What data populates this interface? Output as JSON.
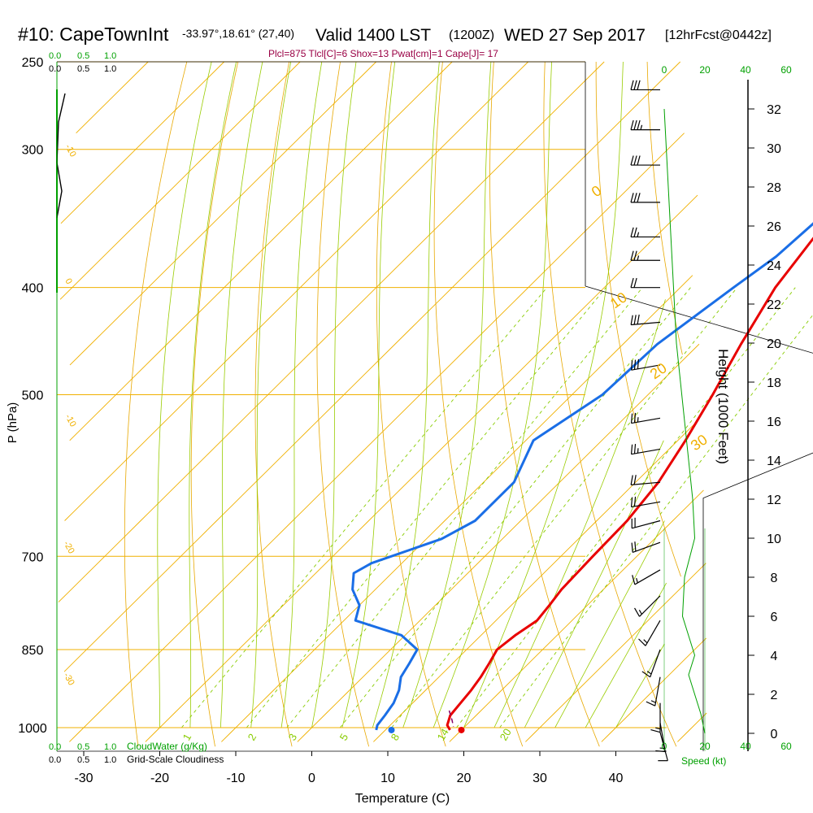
{
  "header": {
    "title_station": "#10: CapeTownInt",
    "title_coords": "-33.97°,18.61° (27,40)",
    "title_valid": "Valid 1400 LST",
    "title_z": "(1200Z)",
    "title_date": "WED 27 Sep 2017",
    "title_fcst": "[12hrFcst@0442z]",
    "stats": "Plcl=875 Tlcl[C]=6 Shox=13 Pwat[cm]=1 Cape[J]= 17"
  },
  "labels": {
    "ylabel": "P (hPa)",
    "xlabel": "Temperature (C)",
    "height_label": "Height (1000 Feet)",
    "cloudwater_label": "CloudWater (g/Kg)",
    "cloudiness_label": "Grid-Scale Cloudiness",
    "speed_label": "Speed (kt)"
  },
  "colors": {
    "isotherm": "#f0b000",
    "dry_adiabat": "#e8a800",
    "moist_adiabat": "#99cc00",
    "mixing_ratio": "#88cc00",
    "temperature": "#e80000",
    "dewpoint": "#1a6ee6",
    "green": "#00a000",
    "magenta": "#990044"
  },
  "chart_data": {
    "type": "line",
    "title": "#10: CapeTownInt -33.97°,18.61° (27,40) Valid 1400 LST (1200Z) WED 27 Sep 2017 [12hrFcst@0442z]",
    "xlabel": "Temperature (C)",
    "ylabel": "P (hPa)",
    "x_ticks": [
      "-30",
      "-20",
      "-10",
      "0",
      "10",
      "20",
      "30",
      "40"
    ],
    "p_ticks": [
      "250",
      "300",
      "400",
      "500",
      "700",
      "850",
      "1000"
    ],
    "height_ticks": [
      "0",
      "2",
      "4",
      "6",
      "8",
      "10",
      "12",
      "14",
      "16",
      "18",
      "20",
      "22",
      "24",
      "26",
      "28",
      "30",
      "32"
    ],
    "isotherm_labels": [
      "-10",
      "0",
      "-10",
      "-20",
      "-30",
      "0",
      "10",
      "20",
      "30"
    ],
    "mixing_ratio_labels": [
      "1",
      "2",
      "3",
      "5",
      "8",
      "14",
      "20"
    ],
    "cloud_scale_top_green": [
      "0.0",
      "0.5",
      "1.0"
    ],
    "cloud_scale_top_black": [
      "0.0",
      "0.5",
      "1.0"
    ],
    "cloud_scale_bottom_green": [
      "0.0",
      "0.5",
      "1.0"
    ],
    "cloud_scale_bottom_black": [
      "0.0",
      "0.5",
      "1.0"
    ],
    "speed_ticks_top": [
      "0",
      "20",
      "40",
      "60"
    ],
    "speed_ticks_bottom": [
      "0",
      "20",
      "40",
      "60"
    ],
    "series": [
      {
        "name": "Temperature",
        "points": [
          [
            -3.0,
            265
          ],
          [
            -1.5,
            300
          ],
          [
            0.5,
            350
          ],
          [
            2.5,
            400
          ],
          [
            5.5,
            450
          ],
          [
            8.5,
            500
          ],
          [
            11.0,
            550
          ],
          [
            13.0,
            600
          ],
          [
            14.0,
            650
          ],
          [
            14.2,
            700
          ],
          [
            14.5,
            750
          ],
          [
            15.0,
            775
          ],
          [
            15.4,
            800
          ],
          [
            14.5,
            825
          ],
          [
            14.0,
            850
          ],
          [
            14.8,
            875
          ],
          [
            15.5,
            900
          ],
          [
            16.0,
            925
          ],
          [
            16.3,
            950
          ],
          [
            16.6,
            975
          ],
          [
            17.5,
            995
          ],
          [
            18.5,
            1005
          ]
        ]
      },
      {
        "name": "Dewpoint",
        "points": [
          [
            -7.5,
            265
          ],
          [
            -4.5,
            300
          ],
          [
            -1.0,
            350
          ],
          [
            -1.5,
            375
          ],
          [
            -3.0,
            400
          ],
          [
            -5.5,
            450
          ],
          [
            -6.0,
            500
          ],
          [
            -9.0,
            550
          ],
          [
            -6.0,
            600
          ],
          [
            -6.0,
            650
          ],
          [
            -8.0,
            675
          ],
          [
            -14.0,
            710
          ],
          [
            -15.0,
            725
          ],
          [
            -13.0,
            750
          ],
          [
            -10.0,
            775
          ],
          [
            -8.5,
            800
          ],
          [
            -0.5,
            825
          ],
          [
            3.5,
            850
          ],
          [
            4.3,
            875
          ],
          [
            5.0,
            900
          ],
          [
            6.5,
            925
          ],
          [
            7.5,
            950
          ],
          [
            8.0,
            975
          ],
          [
            8.3,
            995
          ],
          [
            8.8,
            1005
          ]
        ]
      },
      {
        "name": "Parcel",
        "points": [
          [
            15.8,
            965
          ],
          [
            17.5,
            985
          ],
          [
            18.5,
            998
          ]
        ]
      }
    ],
    "surface_markers": [
      {
        "name": "Surface temperature",
        "x": 20.0,
        "p": 1005
      },
      {
        "name": "Surface dewpoint",
        "x": 10.8,
        "p": 1005
      }
    ],
    "winds": [
      {
        "p": 265,
        "dir": 270,
        "spd": 30
      },
      {
        "p": 288,
        "dir": 270,
        "spd": 35
      },
      {
        "p": 310,
        "dir": 270,
        "spd": 30
      },
      {
        "p": 335,
        "dir": 270,
        "spd": 30
      },
      {
        "p": 360,
        "dir": 270,
        "spd": 25
      },
      {
        "p": 378,
        "dir": 270,
        "spd": 25
      },
      {
        "p": 400,
        "dir": 270,
        "spd": 20
      },
      {
        "p": 430,
        "dir": 265,
        "spd": 30
      },
      {
        "p": 470,
        "dir": 260,
        "spd": 30
      },
      {
        "p": 525,
        "dir": 260,
        "spd": 25
      },
      {
        "p": 560,
        "dir": 260,
        "spd": 25
      },
      {
        "p": 600,
        "dir": 265,
        "spd": 20
      },
      {
        "p": 625,
        "dir": 260,
        "spd": 20
      },
      {
        "p": 650,
        "dir": 255,
        "spd": 20
      },
      {
        "p": 680,
        "dir": 250,
        "spd": 20
      },
      {
        "p": 720,
        "dir": 240,
        "spd": 15
      },
      {
        "p": 760,
        "dir": 225,
        "spd": 15
      },
      {
        "p": 800,
        "dir": 210,
        "spd": 15
      },
      {
        "p": 850,
        "dir": 200,
        "spd": 15
      },
      {
        "p": 900,
        "dir": 190,
        "spd": 15
      },
      {
        "p": 950,
        "dir": 180,
        "spd": 15
      },
      {
        "p": 990,
        "dir": 170,
        "spd": 15
      },
      {
        "p": 1010,
        "dir": 165,
        "spd": 10
      }
    ],
    "wind_speed_profile": [
      [
        32,
        0
      ],
      [
        30,
        1
      ],
      [
        28,
        2
      ],
      [
        26,
        3
      ],
      [
        24,
        4
      ],
      [
        22,
        5
      ],
      [
        20,
        6
      ],
      [
        18,
        8
      ],
      [
        16,
        10
      ],
      [
        14,
        12
      ],
      [
        12,
        14
      ],
      [
        10,
        15
      ],
      [
        8,
        10
      ],
      [
        6,
        9
      ],
      [
        5,
        12
      ],
      [
        4,
        15
      ],
      [
        3,
        12
      ],
      [
        2,
        15
      ],
      [
        1,
        18
      ],
      [
        0,
        20
      ]
    ]
  }
}
